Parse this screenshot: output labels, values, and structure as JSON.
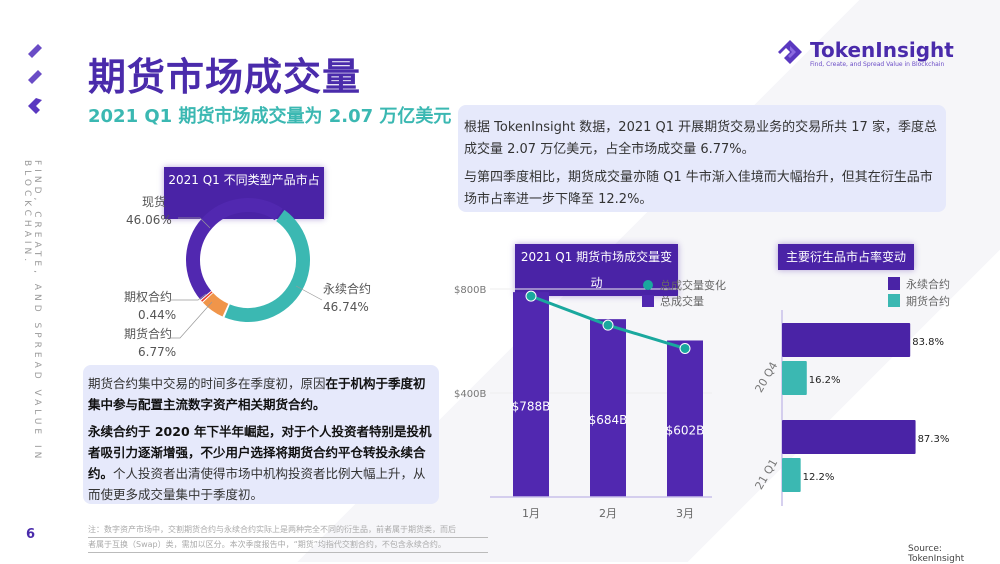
{
  "page": {
    "title": "期货市场成交量",
    "subtitle": "2021 Q1 期货市场成交量为 2.07 万亿美元",
    "side_text": "FIND, CREATE, AND SPREAD VALUE IN BLOCKCHAIN.",
    "page_number": "6",
    "source": "Source: TokenInsight"
  },
  "logo": {
    "name": "TokenInsight",
    "tagline": "Find, Create, and Spread Value in Blockchain",
    "color": "#4a2bab"
  },
  "summary": {
    "p1": "根据 TokenInsight 数据，2021 Q1 开展期货交易业务的交易所共 17 家，季度总成交量 2.07 万亿美元，占全市场成交量 6.77%。",
    "p2": "与第四季度相比，期货成交量亦随 Q1 牛市渐入佳境而大幅抬升，但其在衍生品市场市占率进一步下降至 12.2%。"
  },
  "analysis": {
    "p1_normal": "期货合约集中交易的时间多在季度初，原因",
    "p1_bold": "在于机构于季度初集中参与配置主流数字资产相关期货合约。",
    "p2_bold": "永续合约于 2020 年下半年崛起，对于个人投资者特别是投机者吸引力逐渐增强，不少用户选择将期货合约平仓转投永续合约。",
    "p2_normal": "个人投资者出清使得市场中机构投资者比例大幅上升，从而使更多成交量集中于季度初。"
  },
  "footnote": {
    "line1": "注：数字资产市场中，交割期货合约与永续合约实际上是两种完全不同的衍生品，前者属于期货类，而后",
    "line2": "者属于互换（Swap）类，需加以区分。本次季度报告中，“期货”均指代交割合约，不包含永续合约。"
  },
  "chart_data": [
    {
      "type": "pie",
      "title": "2021 Q1 不同类型产品市占比",
      "donut": true,
      "slices": [
        {
          "label": "永续合约",
          "value": 46.74,
          "display": "46.74%",
          "color": "#3bb8b2"
        },
        {
          "label": "期货合约",
          "value": 6.77,
          "display": "6.77%",
          "color": "#f0954a"
        },
        {
          "label": "期权合约",
          "value": 0.44,
          "display": "0.44%",
          "color": "#e8402e"
        },
        {
          "label": "现货",
          "value": 46.06,
          "display": "46.06%",
          "color": "#5128b0"
        }
      ]
    },
    {
      "type": "bar",
      "title": "2021 Q1 期货市场成交量变动",
      "categories": [
        "1月",
        "2月",
        "3月"
      ],
      "series": [
        {
          "name": "总成交量",
          "type": "bar",
          "values": [
            788,
            684,
            602
          ],
          "labels": [
            "$788B",
            "$684B",
            "$602B"
          ],
          "color": "#5128b0"
        },
        {
          "name": "总成交量变化",
          "type": "line",
          "values": [
            788,
            684,
            602
          ],
          "color": "#1aa89e"
        }
      ],
      "yticks": [
        "$400B",
        "$800B"
      ],
      "ytick_values": [
        400,
        800
      ],
      "ylim": [
        0,
        800
      ],
      "grid": true,
      "legend": "top-right"
    },
    {
      "type": "bar",
      "orientation": "horizontal",
      "title": "主要衍生品市占率变动",
      "categories": [
        "20 Q4",
        "21 Q1"
      ],
      "series": [
        {
          "name": "永续合约",
          "values": [
            83.8,
            87.3
          ],
          "labels": [
            "83.8%",
            "87.3%"
          ],
          "color": "#4a23a6"
        },
        {
          "name": "期货合约",
          "values": [
            16.2,
            12.2
          ],
          "labels": [
            "16.2%",
            "12.2%"
          ],
          "color": "#3bb8b2"
        }
      ],
      "xlim": [
        0,
        100
      ],
      "legend": "top-right"
    }
  ]
}
